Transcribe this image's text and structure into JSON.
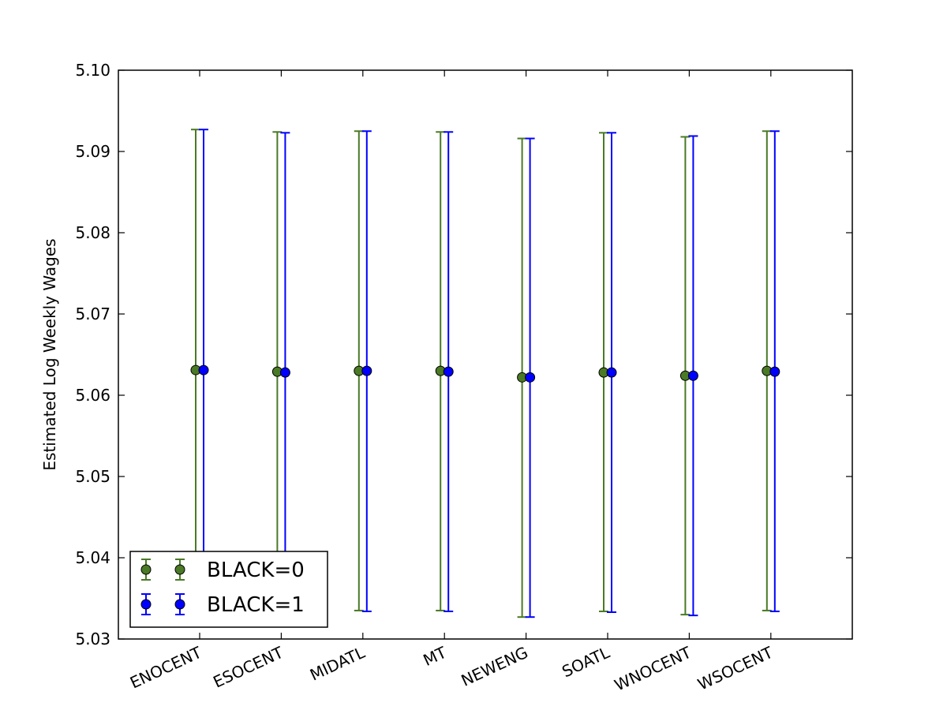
{
  "chart_data": {
    "type": "errorbar",
    "title": "",
    "xlabel": "",
    "ylabel": "Estimated Log Weekly Wages",
    "ylim": [
      5.03,
      5.1
    ],
    "yticks": [
      "5.03",
      "5.04",
      "5.05",
      "5.06",
      "5.07",
      "5.08",
      "5.09",
      "5.10"
    ],
    "categories": [
      "ENOCENT",
      "ESOCENT",
      "MIDATL",
      "MT",
      "NEWENG",
      "SOATL",
      "WNOCENT",
      "WSOCENT"
    ],
    "grid": false,
    "legend_position": "lower-left",
    "series": [
      {
        "name": "BLACK=0",
        "color": "#4a7a25",
        "values": [
          5.0631,
          5.0629,
          5.063,
          5.063,
          5.0622,
          5.0628,
          5.0624,
          5.063
        ],
        "lower": [
          5.0335,
          5.0335,
          5.0335,
          5.0335,
          5.0327,
          5.0334,
          5.033,
          5.0335
        ],
        "upper": [
          5.0927,
          5.0924,
          5.0925,
          5.0924,
          5.0916,
          5.0923,
          5.0918,
          5.0925
        ]
      },
      {
        "name": "BLACK=1",
        "color": "#0000ff",
        "values": [
          5.0631,
          5.0628,
          5.063,
          5.0629,
          5.0622,
          5.0628,
          5.0624,
          5.0629
        ],
        "lower": [
          5.0335,
          5.0333,
          5.0334,
          5.0334,
          5.0327,
          5.0333,
          5.0329,
          5.0334
        ],
        "upper": [
          5.0927,
          5.0923,
          5.0925,
          5.0924,
          5.0916,
          5.0923,
          5.0919,
          5.0925
        ]
      }
    ]
  }
}
